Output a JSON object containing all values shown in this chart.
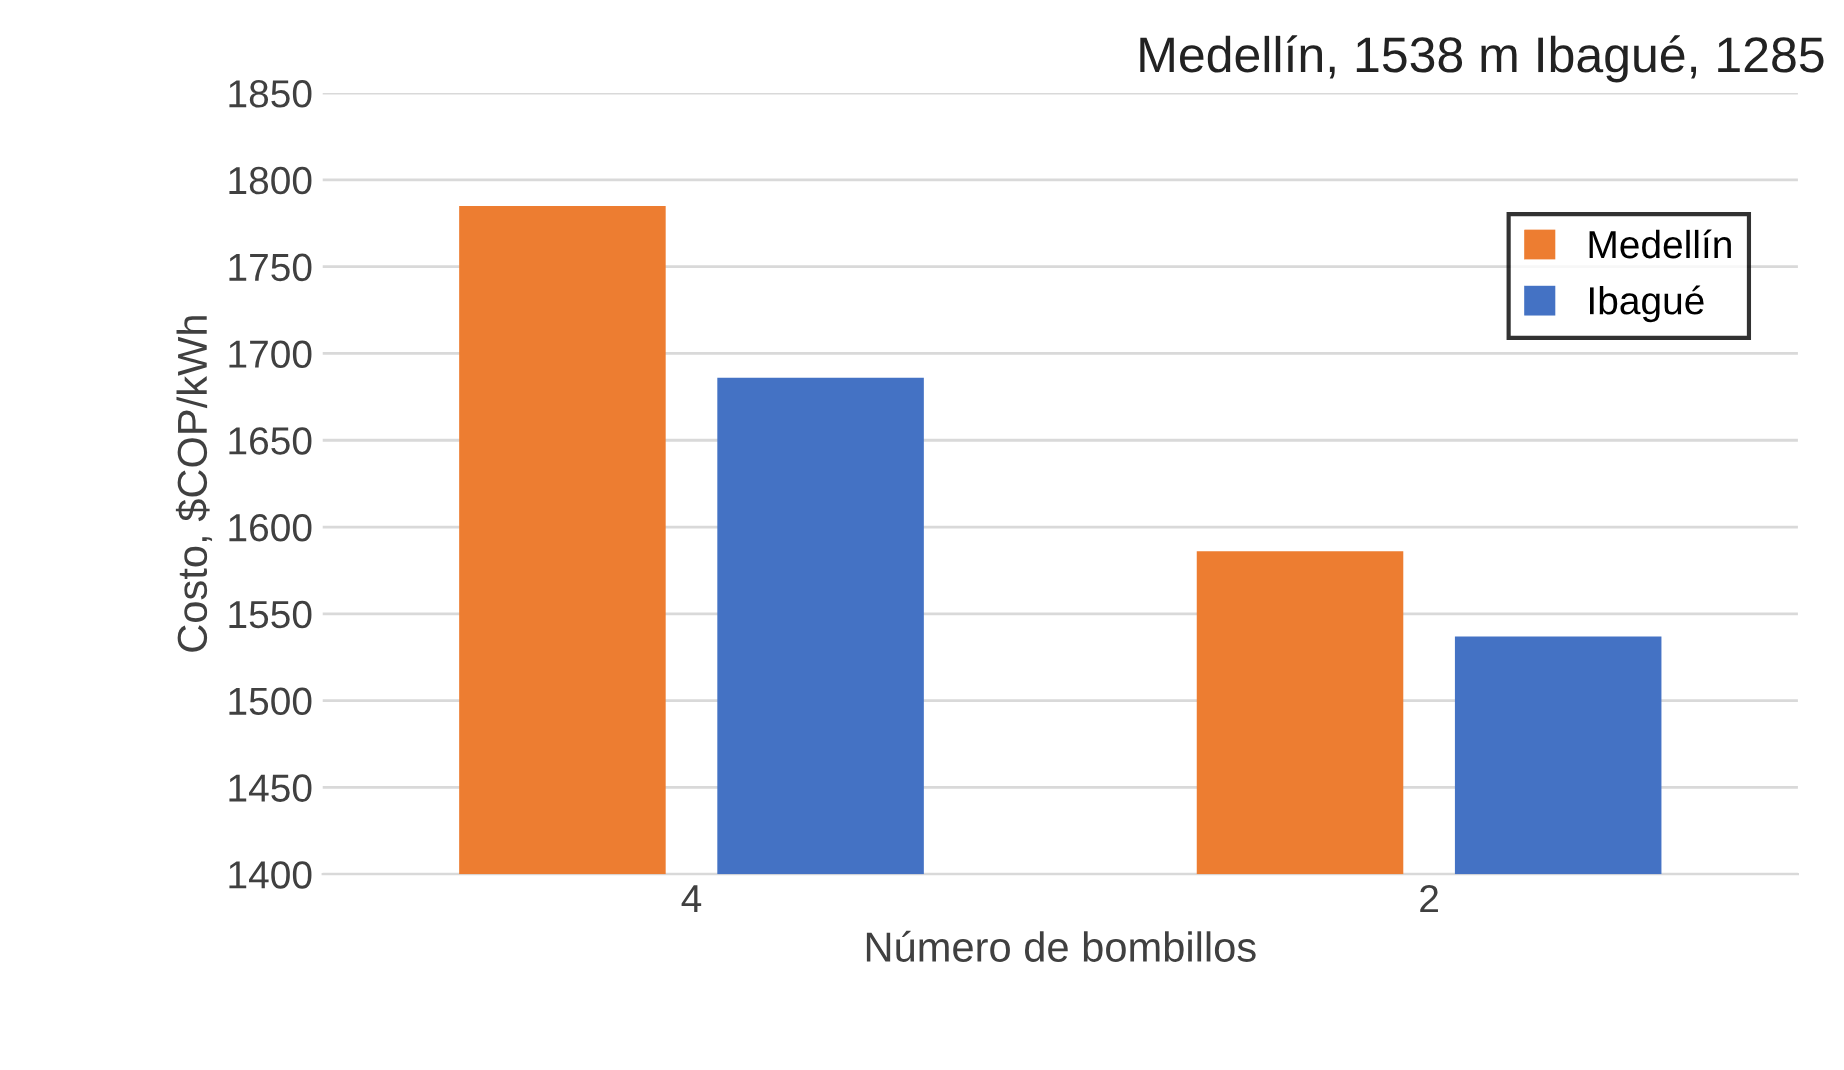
{
  "chart_data": {
    "type": "bar",
    "title": "Medellín, 1538 m Ibagué, 1285",
    "categories": [
      "4",
      "2"
    ],
    "series": [
      {
        "name": "Medellín",
        "color": "#ed7d31",
        "values": [
          1785,
          1586
        ]
      },
      {
        "name": "Ibagué",
        "color": "#4472c4",
        "values": [
          1686,
          1537
        ]
      }
    ],
    "xlabel": "Número de bombillos",
    "ylabel": "Costo, $COP/kWh",
    "ylim": [
      1400,
      1850
    ],
    "yticks": [
      1400,
      1450,
      1500,
      1550,
      1600,
      1650,
      1700,
      1750,
      1800,
      1850
    ],
    "grid": "y",
    "legend": "top right"
  }
}
